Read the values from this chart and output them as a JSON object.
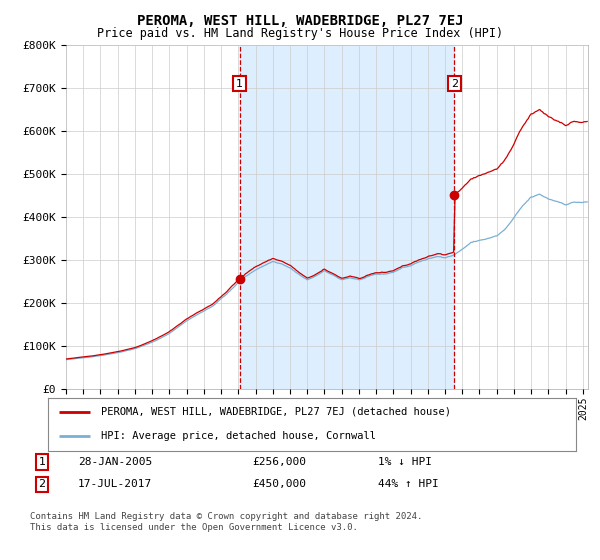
{
  "title": "PEROMA, WEST HILL, WADEBRIDGE, PL27 7EJ",
  "subtitle": "Price paid vs. HM Land Registry's House Price Index (HPI)",
  "ylim": [
    0,
    800000
  ],
  "yticks": [
    0,
    100000,
    200000,
    300000,
    400000,
    500000,
    600000,
    700000,
    800000
  ],
  "ytick_labels": [
    "£0",
    "£100K",
    "£200K",
    "£300K",
    "£400K",
    "£500K",
    "£600K",
    "£700K",
    "£800K"
  ],
  "xlim_start": 1995.0,
  "xlim_end": 2025.3,
  "property_line_color": "#cc0000",
  "hpi_line_color": "#7ab0d4",
  "shade_color": "#ddeeff",
  "sale1_x": 2005.08,
  "sale1_y": 256000,
  "sale2_x": 2017.54,
  "sale2_y": 450000,
  "legend_property": "PEROMA, WEST HILL, WADEBRIDGE, PL27 7EJ (detached house)",
  "legend_hpi": "HPI: Average price, detached house, Cornwall",
  "background_color": "#ffffff",
  "grid_color": "#cccccc",
  "footer": "Contains HM Land Registry data © Crown copyright and database right 2024.\nThis data is licensed under the Open Government Licence v3.0."
}
